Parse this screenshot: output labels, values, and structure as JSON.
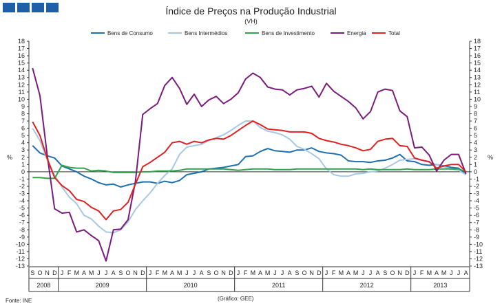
{
  "header": {
    "title": "Índice de Preços na Produção Industrial",
    "subtitle": "(VH)"
  },
  "brand": {
    "logo_color": "#1f5fa8"
  },
  "footer": {
    "source": "Fonte: INE",
    "credit": "(Gráfico: GEE)"
  },
  "chart_data": {
    "type": "line",
    "title": "Índice de Preços na Produção Industrial",
    "subtitle": "(VH)",
    "ylabel_left": "%",
    "ylabel_right": "%",
    "ylim": [
      -13,
      18
    ],
    "yticks": [
      18,
      17,
      16,
      15,
      14,
      13,
      12,
      11,
      10,
      9,
      8,
      7,
      6,
      5,
      4,
      3,
      2,
      1,
      0,
      -1,
      -2,
      -3,
      -4,
      -5,
      -6,
      -7,
      -8,
      -9,
      -10,
      -11,
      -12,
      -13
    ],
    "grid": false,
    "legend": "top",
    "months": [
      "S",
      "O",
      "N",
      "D",
      "J",
      "F",
      "M",
      "A",
      "M",
      "J",
      "J",
      "A",
      "S",
      "O",
      "N",
      "D",
      "J",
      "F",
      "M",
      "A",
      "M",
      "J",
      "J",
      "A",
      "S",
      "O",
      "N",
      "D",
      "J",
      "F",
      "M",
      "A",
      "M",
      "J",
      "J",
      "A",
      "S",
      "O",
      "N",
      "D",
      "J",
      "F",
      "M",
      "A",
      "M",
      "J",
      "J",
      "A",
      "S",
      "O",
      "N",
      "D",
      "J",
      "F",
      "M",
      "A",
      "M",
      "J",
      "J",
      "A"
    ],
    "years": [
      {
        "label": "2008",
        "start": 0,
        "end": 3
      },
      {
        "label": "2009",
        "start": 4,
        "end": 15
      },
      {
        "label": "2010",
        "start": 16,
        "end": 27
      },
      {
        "label": "2011",
        "start": 28,
        "end": 39
      },
      {
        "label": "2012",
        "start": 40,
        "end": 51
      },
      {
        "label": "2013",
        "start": 52,
        "end": 59
      }
    ],
    "series": [
      {
        "name": "Bens de Consumo",
        "color": "#1f6fae",
        "values": [
          3.6,
          2.6,
          2.2,
          1.9,
          0.8,
          0.4,
          0,
          -0.6,
          -1,
          -1.5,
          -1.8,
          -1.7,
          -2.1,
          -1.8,
          -1.6,
          -1.4,
          -1.4,
          -1.6,
          -1.3,
          -1.5,
          -1.2,
          -0.4,
          -0.2,
          0,
          0.4,
          0.5,
          0.6,
          0.8,
          1,
          2.1,
          2.2,
          2.8,
          3.2,
          2.9,
          2.8,
          2.7,
          3,
          3,
          3.3,
          2.8,
          2.6,
          2.5,
          2.3,
          1.5,
          1.4,
          1.4,
          1.3,
          1.5,
          1.6,
          1.9,
          2.4,
          1.5,
          1.4,
          1,
          0.9,
          1,
          0.8,
          0.6,
          0.5,
          -0.4
        ]
      },
      {
        "name": "Bens Intermédios",
        "color": "#a6c8e4",
        "values": [
          6,
          4.3,
          1.6,
          -0.5,
          -2.1,
          -3.5,
          -4.4,
          -6,
          -6.5,
          -7.5,
          -8.3,
          -8.4,
          -8,
          -6.9,
          -5.2,
          -4,
          -2.9,
          -1.6,
          -0.5,
          0.4,
          2.4,
          3.4,
          3.6,
          3.8,
          4.3,
          4.7,
          5.1,
          5.7,
          6.4,
          7,
          7,
          6.1,
          5.6,
          5.4,
          5.1,
          4.5,
          3.5,
          3.1,
          2.5,
          1.8,
          0.4,
          -0.4,
          -0.6,
          -0.6,
          -0.3,
          -0.2,
          0,
          0.1,
          0.5,
          1,
          1.6,
          1.7,
          1.8,
          1.6,
          1.3,
          1,
          0.7,
          0.4,
          0.2,
          -0.4
        ]
      },
      {
        "name": "Bens de Investimento",
        "color": "#2ea34a",
        "values": [
          -0.8,
          -0.8,
          -0.9,
          -0.9,
          0.9,
          0.6,
          0.5,
          0.5,
          0.1,
          0.2,
          0.1,
          -0.1,
          -0.1,
          -0.1,
          -0.1,
          0,
          0,
          0.1,
          0.1,
          0.1,
          0.2,
          0.4,
          0.4,
          0.4,
          0.4,
          0.4,
          0.4,
          0.3,
          0.2,
          0.3,
          0.4,
          0.4,
          0.4,
          0.3,
          0.3,
          0.3,
          0.4,
          0.4,
          0.4,
          0.4,
          0.4,
          0.4,
          0.4,
          0.4,
          0.4,
          0.3,
          0.4,
          0.3,
          0.3,
          0.3,
          0.3,
          0.4,
          0.3,
          0.3,
          0.3,
          0.4,
          0.4,
          0.4,
          0.4,
          0
        ]
      },
      {
        "name": "Energia",
        "color": "#7a1a7a",
        "values": [
          14.3,
          10.5,
          2.2,
          -5.1,
          -5.7,
          -5.6,
          -8.3,
          -8,
          -8.8,
          -9.5,
          -12.3,
          -8,
          -7.9,
          -6.6,
          -1.3,
          7.9,
          8.7,
          9.4,
          11.9,
          13,
          11.5,
          9.3,
          10.7,
          9,
          9.9,
          10.4,
          9.4,
          10,
          10.9,
          12.8,
          13.6,
          13,
          11.7,
          11.4,
          11.3,
          10.6,
          11.3,
          11.5,
          11.8,
          10.3,
          12.2,
          11.1,
          10.4,
          9.7,
          8.8,
          7.3,
          8.3,
          11,
          11.4,
          11.2,
          8.4,
          7.6,
          3.3,
          3.4,
          2.3,
          0.1,
          1.6,
          2.4,
          2.4,
          -0.3
        ]
      },
      {
        "name": "Total",
        "color": "#e02020",
        "values": [
          6.9,
          5,
          1.8,
          -0.8,
          -1.9,
          -2.6,
          -3.8,
          -4.1,
          -4.9,
          -5.4,
          -6.6,
          -5.4,
          -5.2,
          -4.2,
          -1.7,
          0.7,
          1.3,
          2,
          2.7,
          4,
          4.2,
          3.8,
          4.2,
          4,
          4.4,
          4.6,
          4.5,
          5,
          5.7,
          6.4,
          7,
          6.5,
          5.9,
          5.8,
          5.7,
          5.5,
          5.5,
          5.5,
          5.3,
          4.6,
          4.3,
          4.1,
          3.8,
          3.6,
          3.3,
          2.9,
          3.1,
          4.2,
          4.5,
          4.6,
          3.6,
          3.5,
          1.9,
          1.6,
          1.4,
          0.5,
          0.8,
          1,
          1,
          0
        ]
      }
    ]
  }
}
